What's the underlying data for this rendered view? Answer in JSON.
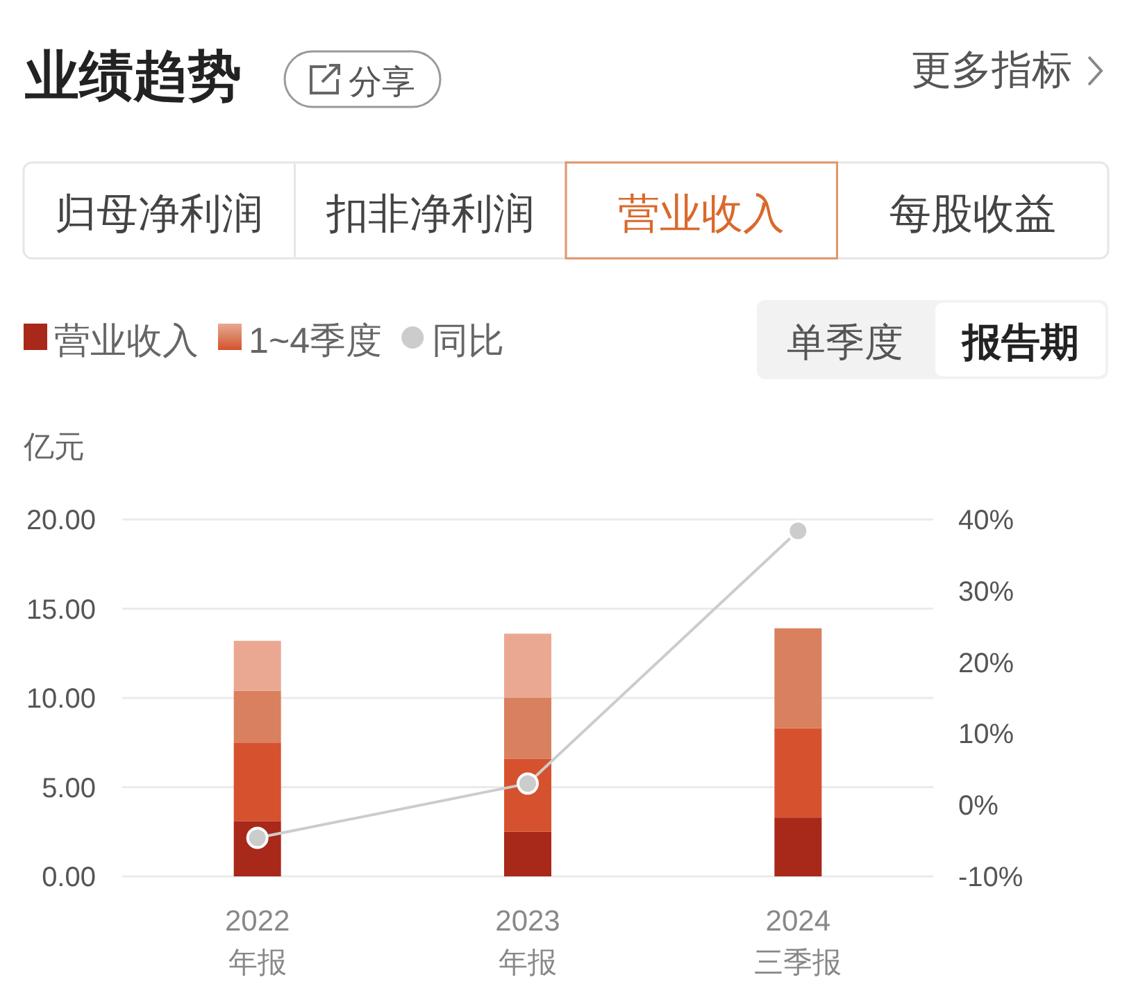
{
  "chart_data": {
    "type": "bar",
    "title": "业绩趋势",
    "ylabel": "亿元",
    "categories": [
      "2022\n年报",
      "2023\n年报",
      "2024\n三季报"
    ],
    "stacked": true,
    "series": [
      {
        "name": "营业收入",
        "color": "#a8281a",
        "values": [
          3.1,
          2.5,
          3.3
        ]
      },
      {
        "name": "1~4季度",
        "color": "#d6522e",
        "values": [
          4.4,
          4.1,
          5.0
        ]
      },
      {
        "color": "#d9805f",
        "values": [
          2.9,
          3.4,
          5.6
        ]
      },
      {
        "color": "#eaa892",
        "values": [
          2.8,
          3.6,
          null
        ]
      },
      {
        "name": "同比",
        "type": "line",
        "axis": "y2",
        "color": "#cccccc",
        "marker": "circle",
        "values": [
          -4.6,
          3.0,
          38.4
        ]
      }
    ],
    "ylim": [
      0,
      20
    ],
    "yticks": [
      {
        "value": 0,
        "label": "0.00"
      },
      {
        "value": 5,
        "label": "5.00"
      },
      {
        "value": 10,
        "label": "10.00"
      },
      {
        "value": 15,
        "label": "15.00"
      },
      {
        "value": 20,
        "label": "20.00"
      }
    ],
    "y2lim": [
      -10,
      40
    ],
    "y2ticks": [
      {
        "value": -10,
        "label": "-10%"
      },
      {
        "value": 0,
        "label": "0%"
      },
      {
        "value": 10,
        "label": "10%"
      },
      {
        "value": 20,
        "label": "20%"
      },
      {
        "value": 30,
        "label": "30%"
      },
      {
        "value": 40,
        "label": "40%"
      }
    ],
    "grid": "y",
    "legend": "top left",
    "annotations": [
      "分享",
      "更多指标",
      "归母净利润",
      "扣非净利润",
      "营业收入",
      "每股收益",
      "单季度",
      "报告期"
    ]
  }
}
